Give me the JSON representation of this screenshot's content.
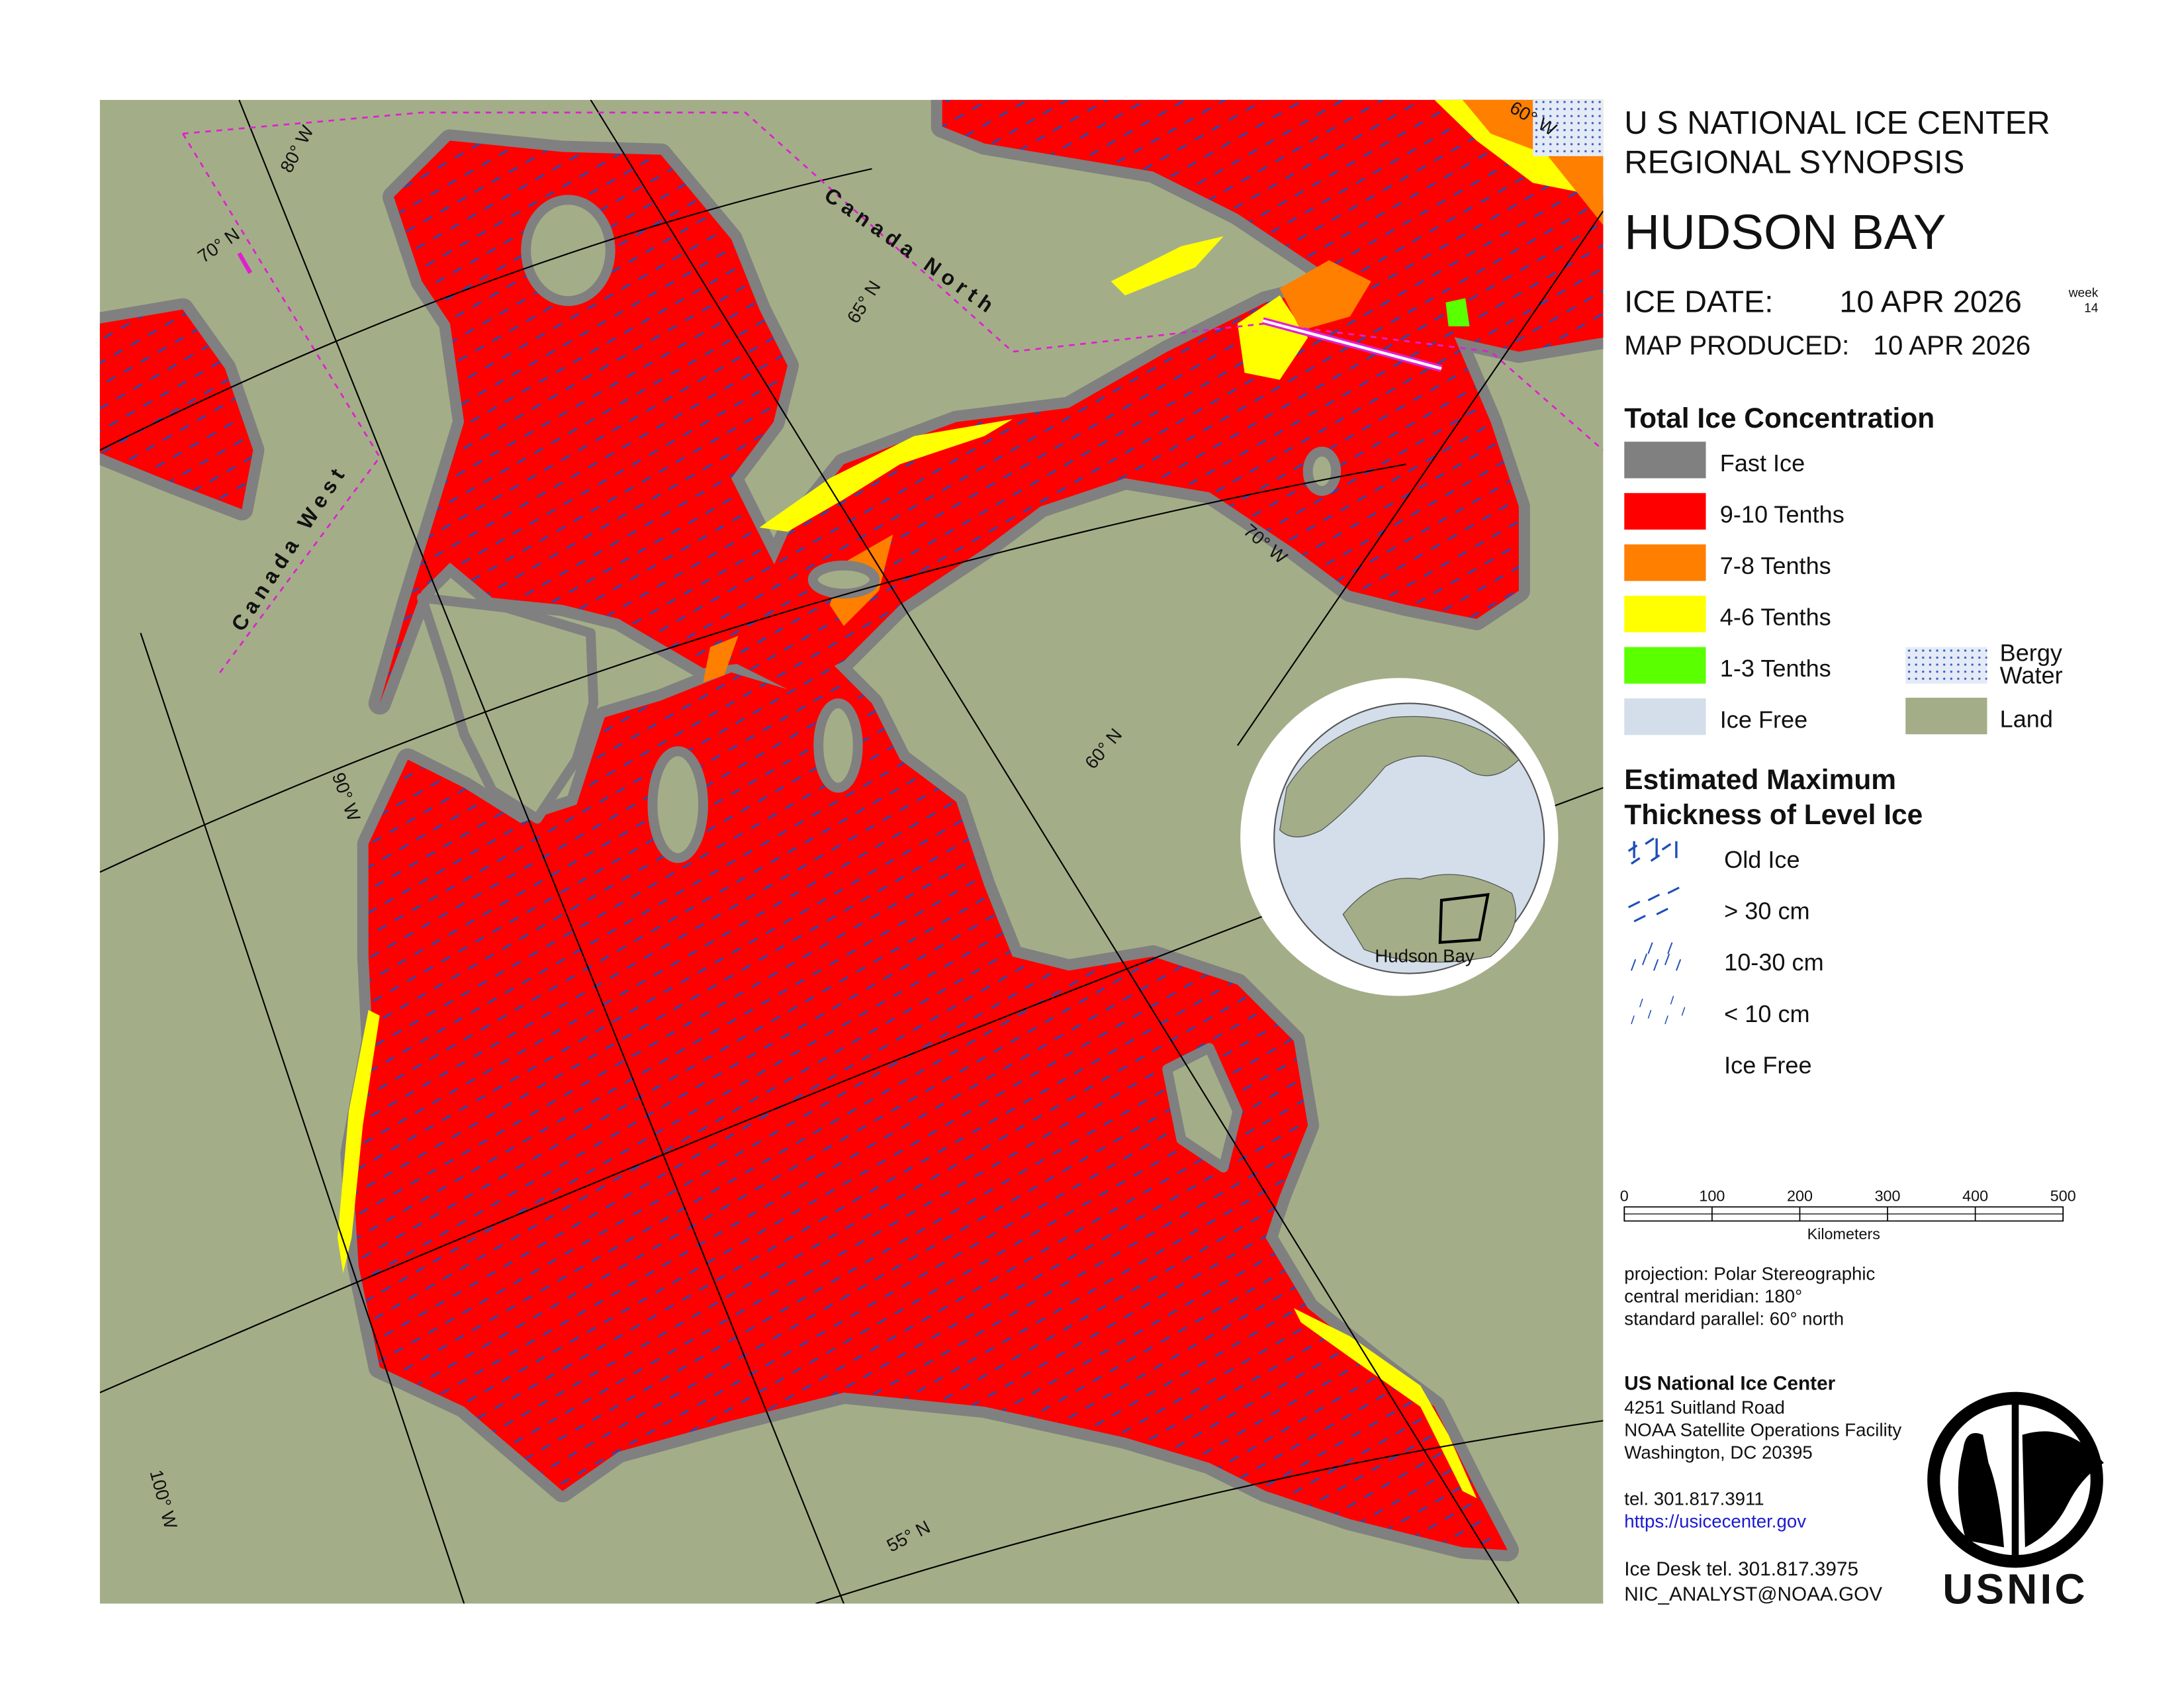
{
  "header": {
    "agency": "U S NATIONAL ICE CENTER",
    "product": "REGIONAL SYNOPSIS",
    "region": "HUDSON BAY",
    "ice_date_label": "ICE DATE:",
    "ice_date": "10 APR 2026",
    "week_label": "week",
    "week": "14",
    "produced_label": "MAP PRODUCED:",
    "produced": "10 APR 2026"
  },
  "legend": {
    "concentration_title": "Total Ice Concentration",
    "concentration": [
      {
        "label": "Fast Ice",
        "color": "#808080"
      },
      {
        "label": "9-10 Tenths",
        "color": "#ff0000"
      },
      {
        "label": "7-8 Tenths",
        "color": "#ff7f00"
      },
      {
        "label": "4-6 Tenths",
        "color": "#ffff00"
      },
      {
        "label": "1-3 Tenths",
        "color": "#5aff00"
      },
      {
        "label": "Ice Free",
        "color": "#d3deea"
      }
    ],
    "bergy_water": [
      "Bergy",
      "Water"
    ],
    "land": {
      "label": "Land",
      "color": "#a3ae88"
    }
  },
  "thickness": {
    "title": [
      "Estimated Maximum",
      "Thickness of Level Ice"
    ],
    "items": [
      "Old Ice",
      "> 30 cm",
      "10-30 cm",
      "< 10 cm",
      "Ice Free"
    ]
  },
  "scale_bar": {
    "ticks": [
      0,
      100,
      200,
      300,
      400,
      500
    ],
    "unit": "Kilometers"
  },
  "projection": [
    "projection: Polar Stereographic",
    "central meridian: 180°",
    "standard parallel:  60° north"
  ],
  "contact": {
    "name": "US National Ice Center",
    "address": [
      "4251 Suitland Road",
      "NOAA Satellite Operations Facility",
      "Washington, DC  20395"
    ],
    "tel": "tel. 301.817.3911",
    "url": "https://usicecenter.gov",
    "ice_desk": "Ice Desk tel. 301.817.3975",
    "email": "NIC_ANALYST@NOAA.GOV"
  },
  "map": {
    "graticule": [
      "80° W",
      "70° N",
      "65° N",
      "70° W",
      "60° N",
      "90° W",
      "100° W",
      "55° N",
      "60° W"
    ],
    "regions": [
      "Canada North",
      "Canada West"
    ],
    "inset_label": "Hudson Bay"
  },
  "logo": "USNIC"
}
